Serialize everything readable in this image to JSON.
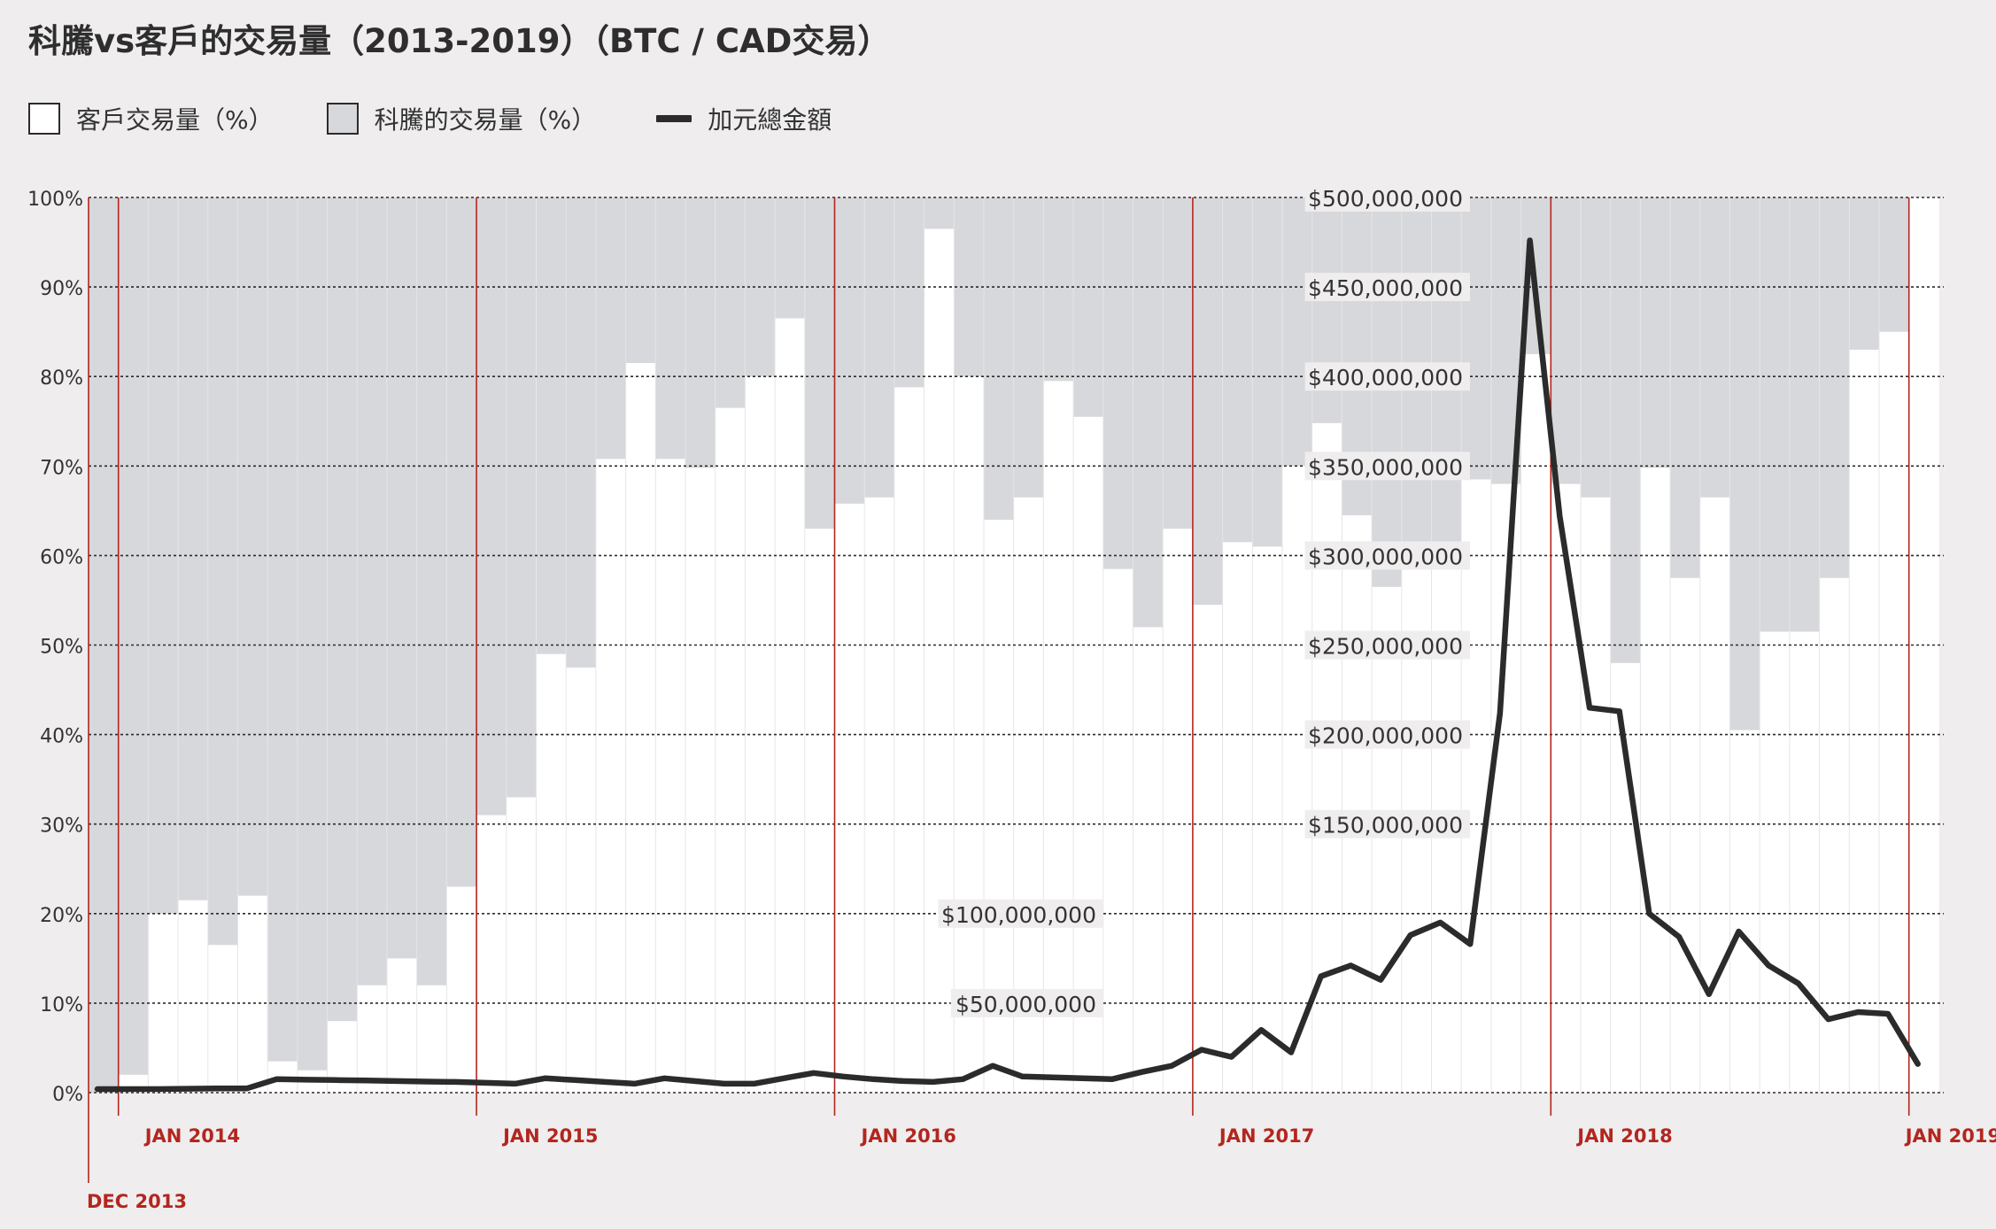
{
  "title": "科騰vs客戶的交易量（2013-2019）（BTC / CAD交易）",
  "legend": {
    "customer": "客戶交易量（%）",
    "company": "科騰的交易量（%）",
    "total": "加元總金額"
  },
  "colors": {
    "background": "#efedee",
    "customer_bar": "#ffffff",
    "company_bar": "#d7d8db",
    "line": "#2b2b2b",
    "year_marker": "#b3261e",
    "year_label": "#b3261e"
  },
  "chart_data": {
    "type": "bar",
    "stacked": true,
    "x_start": "2013-12",
    "x_end": "2019-01",
    "categories": [
      "2013-12",
      "2014-01",
      "2014-02",
      "2014-03",
      "2014-04",
      "2014-05",
      "2014-06",
      "2014-07",
      "2014-08",
      "2014-09",
      "2014-10",
      "2014-11",
      "2014-12",
      "2015-01",
      "2015-02",
      "2015-03",
      "2015-04",
      "2015-05",
      "2015-06",
      "2015-07",
      "2015-08",
      "2015-09",
      "2015-10",
      "2015-11",
      "2015-12",
      "2016-01",
      "2016-02",
      "2016-03",
      "2016-04",
      "2016-05",
      "2016-06",
      "2016-07",
      "2016-08",
      "2016-09",
      "2016-10",
      "2016-11",
      "2016-12",
      "2017-01",
      "2017-02",
      "2017-03",
      "2017-04",
      "2017-05",
      "2017-06",
      "2017-07",
      "2017-08",
      "2017-09",
      "2017-10",
      "2017-11",
      "2017-12",
      "2018-01",
      "2018-02",
      "2018-03",
      "2018-04",
      "2018-05",
      "2018-06",
      "2018-07",
      "2018-08",
      "2018-09",
      "2018-10",
      "2018-11",
      "2018-12",
      "2019-01"
    ],
    "series": [
      {
        "name": "客戶交易量（%）",
        "type": "bar",
        "axis": "left",
        "values": [
          0,
          2,
          20,
          21.5,
          16.5,
          22,
          3.5,
          2.5,
          8,
          12,
          15,
          12,
          23,
          31,
          33,
          49,
          47.5,
          70.8,
          81.5,
          70.8,
          69.8,
          76.5,
          80,
          86.5,
          63,
          65.8,
          66.5,
          78.8,
          96.5,
          80,
          64,
          66.5,
          79.5,
          75.5,
          58.5,
          52,
          63,
          54.5,
          61.5,
          61,
          70,
          74.8,
          64.5,
          56.5,
          61,
          61,
          68.5,
          68,
          82.5,
          68,
          66.5,
          48,
          69.8,
          57.5,
          66.5,
          40.5,
          51.5,
          51.5,
          57.5,
          83,
          85,
          100
        ]
      },
      {
        "name": "科騰的交易量（%）",
        "type": "bar",
        "axis": "left",
        "values": [
          100,
          98,
          80,
          78.5,
          83.5,
          78,
          96.5,
          97.5,
          92,
          88,
          85,
          88,
          77,
          69,
          67,
          51,
          52.5,
          29.2,
          18.5,
          29.2,
          30.2,
          23.5,
          20,
          13.5,
          37,
          34.2,
          33.5,
          21.2,
          3.5,
          20,
          36,
          33.5,
          20.5,
          24.5,
          41.5,
          48,
          37,
          45.5,
          38.5,
          39,
          30,
          25.2,
          35.5,
          43.5,
          39,
          39,
          31.5,
          32,
          17.5,
          32,
          33.5,
          52,
          30.2,
          42.5,
          33.5,
          59.5,
          48.5,
          48.5,
          42.5,
          17,
          15,
          0
        ]
      },
      {
        "name": "加元總金額",
        "type": "line",
        "axis": "right",
        "x": [
          "2013-12",
          "2014-01",
          "2014-02",
          "2014-03",
          "2014-04",
          "2014-05",
          "2014-06",
          "2014-07",
          "2014-08",
          "2014-09",
          "2014-10",
          "2014-11",
          "2014-12",
          "2015-01",
          "2015-02",
          "2015-03",
          "2015-04",
          "2015-05",
          "2015-06",
          "2015-07",
          "2015-08",
          "2015-09",
          "2015-10",
          "2015-11",
          "2015-12",
          "2016-01",
          "2016-02",
          "2016-03",
          "2016-04",
          "2016-05",
          "2016-06",
          "2016-07",
          "2016-08",
          "2016-09",
          "2016-10",
          "2016-11",
          "2016-12",
          "2017-01",
          "2017-02",
          "2017-03",
          "2017-04",
          "2017-05",
          "2017-06",
          "2017-07",
          "2017-08",
          "2017-09",
          "2017-10",
          "2017-11",
          "2017-12",
          "2018-01",
          "2018-02",
          "2018-03",
          "2018-04",
          "2018-05",
          "2018-06",
          "2018-07",
          "2018-08",
          "2018-09",
          "2018-10",
          "2018-11",
          "2018-12",
          "2019-01"
        ],
        "values": [
          2000000,
          2000000,
          2000000,
          2200000,
          2300000,
          2300000,
          7500000,
          7200000,
          7000000,
          6800000,
          6500000,
          6200000,
          6000000,
          5500000,
          5000000,
          8000000,
          7000000,
          6000000,
          5000000,
          8000000,
          6500000,
          5000000,
          5000000,
          8000000,
          11000000,
          9000000,
          7500000,
          6500000,
          6000000,
          7500000,
          15000000,
          9000000,
          8500000,
          8000000,
          7500000,
          11500000,
          15000000,
          24000000,
          20000000,
          35000000,
          22500000,
          65000000,
          71000000,
          63000000,
          88000000,
          95000000,
          83000000,
          212000000,
          476000000,
          322000000,
          215000000,
          213000000,
          100000000,
          87000000,
          55000000,
          90000000,
          71000000,
          61000000,
          41000000,
          45000000,
          44000000,
          16000000
        ]
      }
    ],
    "left_axis": {
      "ylim": [
        0,
        100
      ],
      "ticks": [
        0,
        10,
        20,
        30,
        40,
        50,
        60,
        70,
        80,
        90,
        100
      ],
      "tick_labels": [
        "0%",
        "10%",
        "20%",
        "30%",
        "40%",
        "50%",
        "60%",
        "70%",
        "80%",
        "90%",
        "100%"
      ]
    },
    "right_axis": {
      "ylim": [
        0,
        500000000
      ],
      "ticks": [
        50000000,
        100000000,
        150000000,
        200000000,
        250000000,
        300000000,
        350000000,
        400000000,
        450000000,
        500000000
      ],
      "tick_labels": [
        "$50,000,000",
        "$100,000,000",
        "$150,000,000",
        "$200,000,000",
        "$250,000,000",
        "$300,000,000",
        "$350,000,000",
        "$400,000,000",
        "$450,000,000",
        "$500,000,000"
      ]
    },
    "year_markers": [
      {
        "date": "2013-12",
        "label": "DEC 2013"
      },
      {
        "date": "2014-01",
        "label": "JAN 2014"
      },
      {
        "date": "2015-01",
        "label": "JAN 2015"
      },
      {
        "date": "2016-01",
        "label": "JAN 2016"
      },
      {
        "date": "2017-01",
        "label": "JAN 2017"
      },
      {
        "date": "2018-01",
        "label": "JAN 2018"
      },
      {
        "date": "2019-01",
        "label": "JAN 2019"
      }
    ],
    "grid": true,
    "legend_position": "top-left"
  }
}
